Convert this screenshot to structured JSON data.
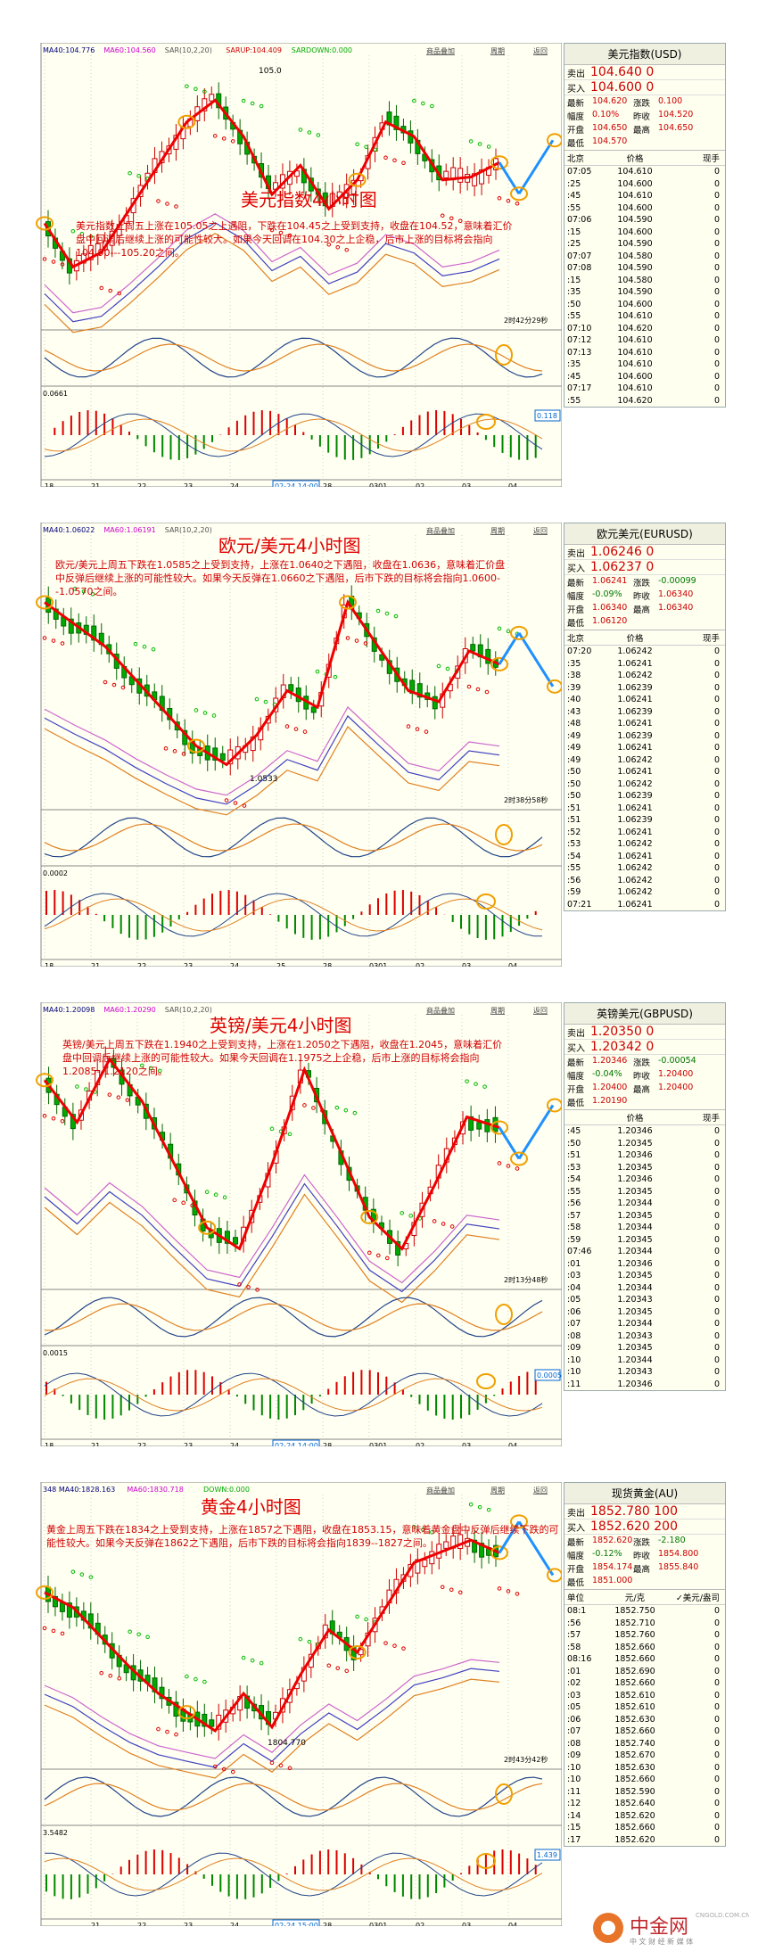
{
  "panels": [
    {
      "title": "美元指数4小时图",
      "desc": "美元指数上周五上涨在105.05之上遇阻，下跌在104.45之上受到支持，收盘在104.52，意味着汇价盘中回调后继续上涨的可能性较大。如果今天回调在104.30之上企稳，后市上涨的目标将会指向104.90---105.20之间。",
      "indicators": {
        "ma40": "MA40:104.776",
        "ma60": "MA60:104.560",
        "sar": "SAR(10,2,20)",
        "sarup": "SARUP:104.409",
        "sardown": "SARDOWN:0.000"
      },
      "macd_label": "0.0661",
      "macd_box": "0.118",
      "countdown": "2时42分29秒",
      "hi_label": "105.0",
      "lo_label": "",
      "xaxis": [
        "18",
        "21",
        "22",
        "23",
        "24",
        "02-24 14:00",
        "28",
        "0301",
        "02",
        "03",
        "04"
      ],
      "quote": {
        "title": "美元指数(USD)",
        "sell_label": "卖出",
        "sell": "104.640 0",
        "buy_label": "买入",
        "buy": "104.600 0",
        "stats": [
          "最新",
          "104.620",
          "涨跌",
          "0.100",
          "幅度",
          "0.10%",
          "昨收",
          "104.520",
          "开盘",
          "104.650",
          "最高",
          "104.650",
          "最低",
          "104.570",
          "",
          " "
        ],
        "hdr": [
          "北京",
          "价格",
          "现手"
        ],
        "ticks": [
          [
            "07:05",
            "104.610",
            "0"
          ],
          [
            ":25",
            "104.600",
            "0"
          ],
          [
            ":45",
            "104.610",
            "0"
          ],
          [
            ":55",
            "104.600",
            "0"
          ],
          [
            "07:06",
            "104.590",
            "0"
          ],
          [
            ":15",
            "104.600",
            "0"
          ],
          [
            ":25",
            "104.590",
            "0"
          ],
          [
            "07:07",
            "104.580",
            "0"
          ],
          [
            "07:08",
            "104.590",
            "0"
          ],
          [
            ":15",
            "104.580",
            "0"
          ],
          [
            ":35",
            "104.590",
            "0"
          ],
          [
            ":50",
            "104.600",
            "0"
          ],
          [
            ":55",
            "104.610",
            "0"
          ],
          [
            "07:10",
            "104.620",
            "0"
          ],
          [
            "07:12",
            "104.610",
            "0"
          ],
          [
            "07:13",
            "104.610",
            "0"
          ],
          [
            ":35",
            "104.610",
            "0"
          ],
          [
            ":45",
            "104.600",
            "0"
          ],
          [
            "07:17",
            "104.610",
            "0"
          ],
          [
            ":55",
            "104.620",
            "0"
          ]
        ]
      }
    },
    {
      "title": "欧元/美元4小时图",
      "desc": "欧元/美元上周五下跌在1.0585之上受到支持，上涨在1.0640之下遇阻，收盘在1.0636，意味着汇价盘中反弹后继续上涨的可能性较大。如果今天反弹在1.0660之下遇阻，后市下跌的目标将会指向1.0600--1.0570之间。",
      "indicators": {
        "ma40": "MA40:1.06022",
        "ma60": "MA60:1.06191",
        "sar": "SAR(10,2,20)",
        "sarup": "",
        "sardown": ""
      },
      "macd_label": "0.0002",
      "macd_box": "",
      "countdown": "2时38分58秒",
      "hi_label": "",
      "lo_label": "1.0533",
      "xaxis": [
        "18",
        "21",
        "22",
        "23",
        "24",
        "25",
        "28",
        "0301",
        "02",
        "03",
        "04"
      ],
      "quote": {
        "title": "欧元美元(EURUSD)",
        "sell_label": "卖出",
        "sell": "1.06246 0",
        "buy_label": "买入",
        "buy": "1.06237 0",
        "stats": [
          "最新",
          "1.06241",
          "涨跌",
          "-0.00099",
          "幅度",
          "-0.09%",
          "昨收",
          "1.06340",
          "开盘",
          "1.06340",
          "最高",
          "1.06340",
          "最低",
          "1.06120",
          "",
          " "
        ],
        "hdr": [
          "北京",
          "价格",
          "现手"
        ],
        "ticks": [
          [
            "07:20",
            "1.06242",
            "0"
          ],
          [
            ":35",
            "1.06241",
            "0"
          ],
          [
            ":38",
            "1.06242",
            "0"
          ],
          [
            ":39",
            "1.06239",
            "0"
          ],
          [
            ":40",
            "1.06241",
            "0"
          ],
          [
            ":43",
            "1.06239",
            "0"
          ],
          [
            ":48",
            "1.06241",
            "0"
          ],
          [
            ":49",
            "1.06239",
            "0"
          ],
          [
            ":49",
            "1.06241",
            "0"
          ],
          [
            ":49",
            "1.06242",
            "0"
          ],
          [
            ":50",
            "1.06241",
            "0"
          ],
          [
            ":50",
            "1.06242",
            "0"
          ],
          [
            ":50",
            "1.06239",
            "0"
          ],
          [
            ":51",
            "1.06241",
            "0"
          ],
          [
            ":51",
            "1.06239",
            "0"
          ],
          [
            ":52",
            "1.06241",
            "0"
          ],
          [
            ":53",
            "1.06242",
            "0"
          ],
          [
            ":54",
            "1.06241",
            "0"
          ],
          [
            ":55",
            "1.06242",
            "0"
          ],
          [
            ":56",
            "1.06242",
            "0"
          ],
          [
            ":59",
            "1.06242",
            "0"
          ],
          [
            "07:21",
            "1.06241",
            "0"
          ]
        ]
      }
    },
    {
      "title": "英镑/美元4小时图",
      "desc": "英镑/美元上周五下跌在1.1940之上受到支持，上涨在1.2050之下遇阻，收盘在1.2045，意味着汇价盘中回调后继续上涨的可能性较大。如果今天回调在1.1975之上企稳，后市上涨的目标将会指向1.2085--1.2120之间。",
      "indicators": {
        "ma40": "MA40:1.20098",
        "ma60": "MA60:1.20290",
        "sar": "SAR(10,2,20)",
        "sarup": "",
        "sardown": ""
      },
      "macd_label": "0.0015",
      "macd_box": "0.00050",
      "countdown": "2时13分48秒",
      "hi_label": "",
      "lo_label": "",
      "xaxis": [
        "18",
        "21",
        "22",
        "23",
        "24",
        "02-24 14:00",
        "28",
        "0301",
        "02",
        "03",
        "04"
      ],
      "quote": {
        "title": "英镑美元(GBPUSD)",
        "sell_label": "卖出",
        "sell": "1.20350 0",
        "buy_label": "买入",
        "buy": "1.20342 0",
        "stats": [
          "最新",
          "1.20346",
          "涨跌",
          "-0.00054",
          "幅度",
          "-0.04%",
          "昨收",
          "1.20400",
          "开盘",
          "1.20400",
          "最高",
          "1.20400",
          "最低",
          "1.20190",
          "",
          " "
        ],
        "hdr": [
          "",
          "价格",
          "现手"
        ],
        "ticks": [
          [
            ":45",
            "1.20346",
            "0"
          ],
          [
            ":50",
            "1.20345",
            "0"
          ],
          [
            ":51",
            "1.20346",
            "0"
          ],
          [
            ":53",
            "1.20345",
            "0"
          ],
          [
            ":54",
            "1.20346",
            "0"
          ],
          [
            ":55",
            "1.20345",
            "0"
          ],
          [
            ":56",
            "1.20344",
            "0"
          ],
          [
            ":57",
            "1.20345",
            "0"
          ],
          [
            ":58",
            "1.20344",
            "0"
          ],
          [
            ":59",
            "1.20345",
            "0"
          ],
          [
            "07:46",
            "1.20344",
            "0"
          ],
          [
            ":01",
            "1.20346",
            "0"
          ],
          [
            ":03",
            "1.20345",
            "0"
          ],
          [
            ":04",
            "1.20344",
            "0"
          ],
          [
            ":05",
            "1.20343",
            "0"
          ],
          [
            ":06",
            "1.20345",
            "0"
          ],
          [
            ":07",
            "1.20344",
            "0"
          ],
          [
            ":08",
            "1.20343",
            "0"
          ],
          [
            ":09",
            "1.20345",
            "0"
          ],
          [
            ":10",
            "1.20344",
            "0"
          ],
          [
            ":10",
            "1.20343",
            "0"
          ],
          [
            ":11",
            "1.20346",
            "0"
          ]
        ]
      }
    },
    {
      "title": "黄金4小时图",
      "desc": "黄金上周五下跌在1834之上受到支持，上涨在1857之下遇阻，收盘在1853.15，意味着黄金盘中反弹后继续下跌的可能性较大。如果今天反弹在1862之下遇阻，后市下跌的目标将会指向1839--1827之间。",
      "indicators": {
        "ma40": "348 MA40:1828.163",
        "ma60": "MA60:1830.718",
        "sar": "",
        "sarup": "",
        "sardown": "DOWN:0.000"
      },
      "macd_label": "3.5482",
      "macd_box": "1.439",
      "countdown": "2时43分42秒",
      "hi_label": "",
      "lo_label": "1804.770",
      "xaxis": [
        "",
        "21",
        "22",
        "23",
        "24",
        "02-24 15:00",
        "28",
        "0301",
        "02",
        "03",
        "04"
      ],
      "quote": {
        "title": "现货黄金(AU)",
        "sell_label": "卖出",
        "sell": "1852.780 100",
        "buy_label": "买入",
        "buy": "1852.620 200",
        "stats": [
          "最新",
          "1852.620",
          "涨跌",
          "-2.180",
          "幅度",
          "-0.12%",
          "昨收",
          "1854.800",
          "开盘",
          "1854.174",
          "最高",
          "1855.840",
          "最低",
          "1851.000",
          "",
          " "
        ],
        "hdr": [
          "单位",
          "元/克",
          "✓美元/盎司"
        ],
        "ticks": [
          [
            "08:1",
            "1852.750",
            "0"
          ],
          [
            ":56",
            "1852.710",
            "0"
          ],
          [
            ":57",
            "1852.760",
            "0"
          ],
          [
            ":58",
            "1852.660",
            "0"
          ],
          [
            "08:16",
            "1852.660",
            "0"
          ],
          [
            ":01",
            "1852.690",
            "0"
          ],
          [
            ":02",
            "1852.660",
            "0"
          ],
          [
            ":03",
            "1852.610",
            "0"
          ],
          [
            ":05",
            "1852.610",
            "0"
          ],
          [
            ":06",
            "1852.630",
            "0"
          ],
          [
            ":07",
            "1852.660",
            "0"
          ],
          [
            ":08",
            "1852.740",
            "0"
          ],
          [
            ":09",
            "1852.670",
            "0"
          ],
          [
            ":10",
            "1852.630",
            "0"
          ],
          [
            ":10",
            "1852.660",
            "0"
          ],
          [
            ":11",
            "1852.590",
            "0"
          ],
          [
            ":12",
            "1852.640",
            "0"
          ],
          [
            ":14",
            "1852.620",
            "0"
          ],
          [
            ":15",
            "1852.660",
            "0"
          ],
          [
            ":17",
            "1852.620",
            "0"
          ]
        ]
      }
    }
  ],
  "buttons": {
    "overlay": "商品叠加",
    "cycle": "周期",
    "close": "返回"
  },
  "watermark": {
    "logo": "中金网",
    "url": "CNGOLD.COM.CN",
    "slogan": "中 文 财 经 新 媒 体"
  },
  "chart_data": [
    {
      "type": "line",
      "title": "美元指数4小时图",
      "series": [
        {
          "name": "",
          "values": [
            104.2,
            103.9,
            104.0,
            104.3,
            104.6,
            104.9,
            105.05,
            104.8,
            104.4,
            104.6,
            104.3,
            104.5,
            104.9,
            104.8,
            104.5,
            104.52,
            104.62
          ]
        }
      ],
      "ylim": [
        103.6,
        105.2
      ]
    },
    {
      "type": "line",
      "title": "欧元/美元4小时图",
      "series": [
        {
          "name": "",
          "values": [
            1.068,
            1.066,
            1.064,
            1.061,
            1.058,
            1.055,
            1.0533,
            1.056,
            1.06,
            1.0585,
            1.068,
            1.064,
            1.06,
            1.059,
            1.0636,
            1.0624
          ]
        }
      ],
      "ylim": [
        1.051,
        1.072
      ]
    },
    {
      "type": "line",
      "title": "英镑/美元4小时图",
      "series": [
        {
          "name": "",
          "values": [
            1.208,
            1.204,
            1.21,
            1.206,
            1.2,
            1.194,
            1.192,
            1.2,
            1.209,
            1.202,
            1.195,
            1.192,
            1.198,
            1.2045,
            1.2035
          ]
        }
      ],
      "ylim": [
        1.19,
        1.212
      ]
    },
    {
      "type": "line",
      "title": "黄金4小时图",
      "series": [
        {
          "name": "",
          "values": [
            1842,
            1838,
            1830,
            1822,
            1815,
            1810,
            1805,
            1815,
            1806,
            1820,
            1832,
            1826,
            1838,
            1850,
            1853,
            1856,
            1852.6
          ]
        }
      ],
      "ylim": [
        1800,
        1862
      ]
    }
  ]
}
